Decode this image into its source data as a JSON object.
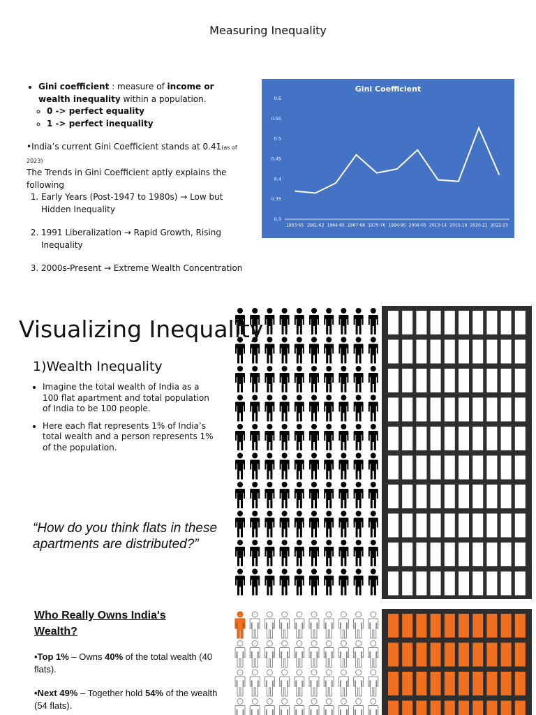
{
  "title": "Measuring Inequality",
  "gini_intro": [
    "Gini coefficient",
    " : measure of ",
    "income or wealth inequality",
    " within a population."
  ],
  "gini_range": [
    "0 -> perfect equality",
    "1 -> perfect inequality"
  ],
  "india_current": [
    "•India’s current Gini Coefficient stands at 0.41",
    "(as of 2023)",
    "The Trends in Gini Coefficient aptly explains the following"
  ],
  "trends": [
    "Early Years (Post-1947 to 1980s) → Low but Hidden Inequality",
    "1991 Liberalization → Rapid Growth, Rising Inequality",
    "2000s-Present → Extreme Wealth Concentration"
  ],
  "chart_data": {
    "type": "line",
    "title": "Gini Coefficient",
    "categories": [
      "1953-55",
      "1961-62",
      "1964-65",
      "1967-68",
      "1975-76",
      "1994-95",
      "2004-05",
      "2013-14",
      "2015-16",
      "2020-21",
      "2022-23"
    ],
    "values": [
      0.37,
      0.365,
      0.39,
      0.46,
      0.415,
      0.425,
      0.472,
      0.398,
      0.394,
      0.527,
      0.41
    ],
    "color": "#ffffff",
    "background": "#4472c4",
    "ylim": [
      0.3,
      0.6
    ],
    "yticks": [
      0.3,
      0.35,
      0.4,
      0.45,
      0.5,
      0.55,
      0.6
    ],
    "grid": false
  },
  "visualizing": {
    "heading": "Visualizing Inequality",
    "subheading": "1)Wealth Inequality",
    "bullets": [
      "Imagine the total wealth of India as a 100 flat apartment and total population of India to be 100 people.",
      "Here each flat represents 1% of India’s total wealth and a person represents 1% of the population."
    ],
    "question": "“How do you think flats in these apartments are distributed?”"
  },
  "ownership": {
    "heading": "Who Really Owns India's Wealth?",
    "items": [
      [
        "•Top 1%",
        " – Owns ",
        "40%",
        " of the total wealth (40 flats)."
      ],
      [
        "•Next 49%",
        " – Together hold ",
        "54%",
        " of the wealth (54 flats)."
      ]
    ]
  }
}
